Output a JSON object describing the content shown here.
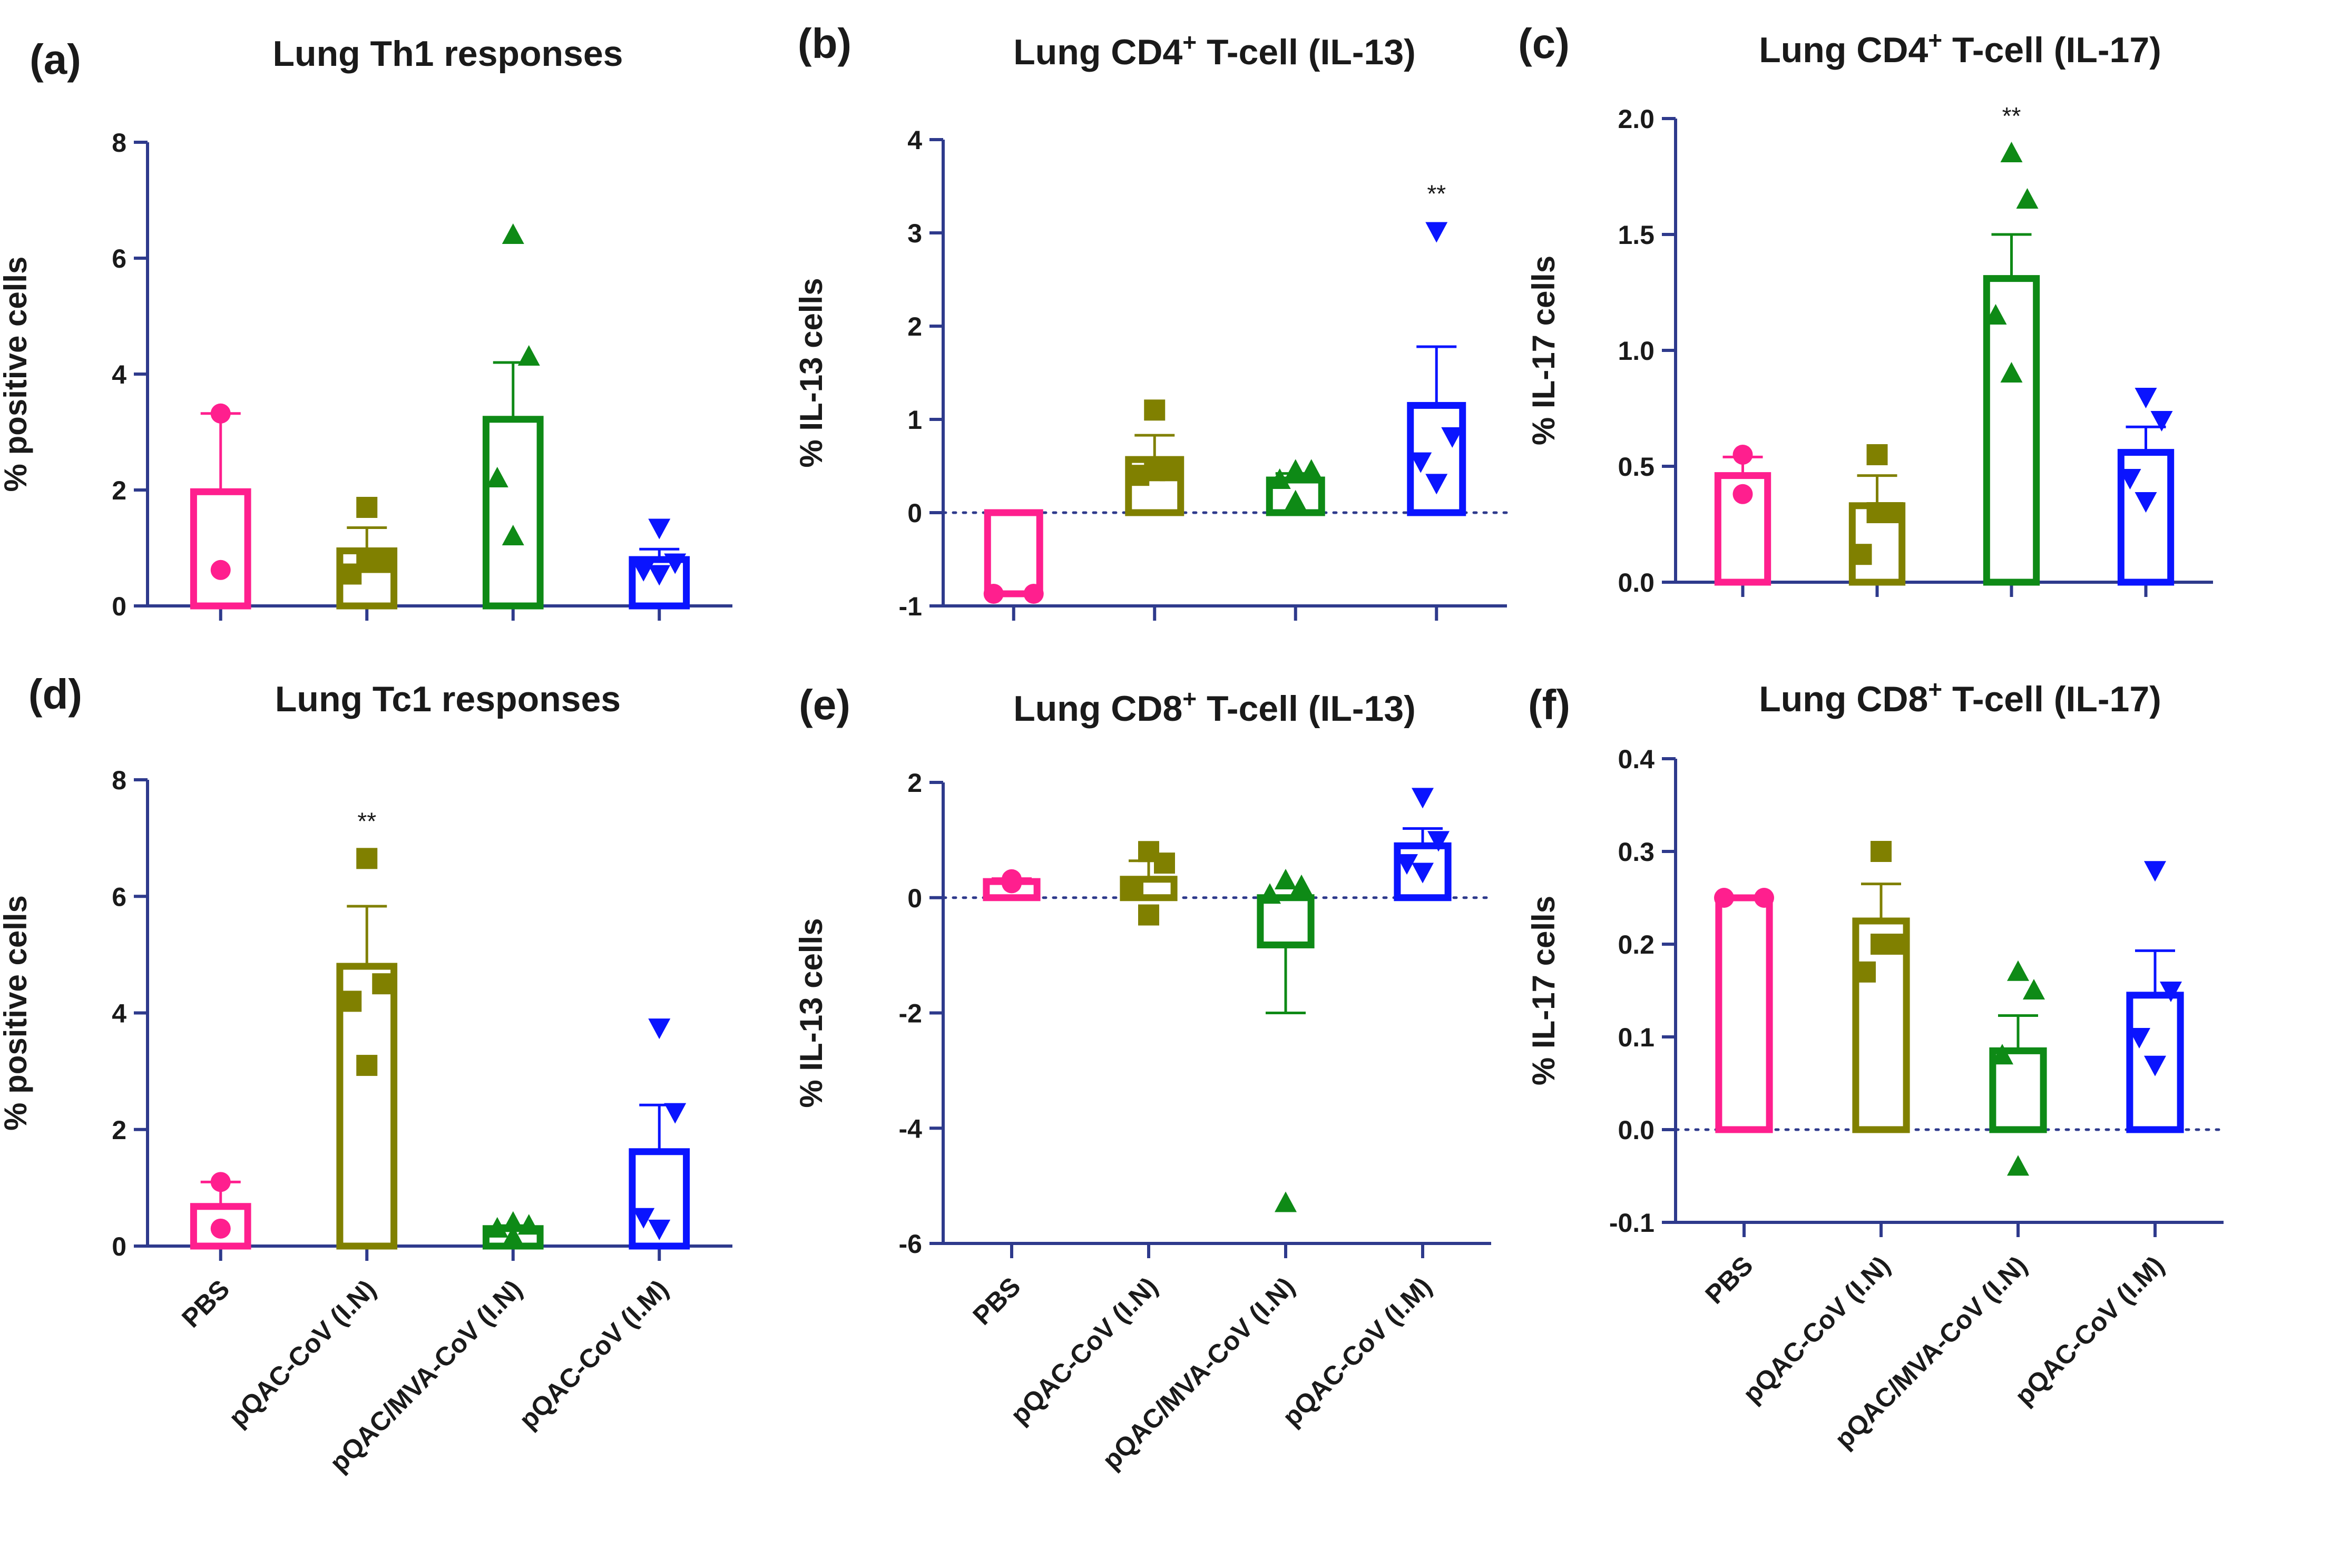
{
  "figure": {
    "categories": [
      "PBS",
      "pQAC-CoV (I.N)",
      "pQAC/MVA-CoV (I.N)",
      "pQAC-CoV (I.M)"
    ],
    "colors": [
      "#ff1f8e",
      "#808000",
      "#0e8a16",
      "#0a14ff"
    ],
    "markers": [
      "circle",
      "square",
      "triangle-up",
      "triangle-down"
    ],
    "axis_color": "#2e3a8c"
  },
  "chart_data": [
    {
      "type": "bar",
      "panel_label": "(a)",
      "title": "Lung Th1 responses",
      "title_sup": "",
      "title_rest": "",
      "ylabel": "% positive cells",
      "ylim": [
        0,
        8
      ],
      "yticks": [
        "0",
        "2",
        "4",
        "6",
        "8"
      ],
      "show_categories": false,
      "zero_line": false,
      "categories": [
        "PBS",
        "pQAC-CoV (I.N)",
        "pQAC/MVA-CoV (I.N)",
        "pQAC-CoV (I.M)"
      ],
      "series": [
        {
          "name": "PBS",
          "mean": 1.97,
          "sem": 1.35,
          "points": [
            3.32,
            0.62
          ],
          "sig": ""
        },
        {
          "name": "pQAC-CoV (I.N)",
          "mean": 0.95,
          "sem": 0.4,
          "points": [
            1.7,
            0.75,
            0.55,
            0.75
          ],
          "sig": ""
        },
        {
          "name": "pQAC/MVA-CoV (I.N)",
          "mean": 3.22,
          "sem": 0.98,
          "points": [
            6.4,
            4.3,
            2.2,
            1.2
          ],
          "sig": ""
        },
        {
          "name": "pQAC-CoV (I.M)",
          "mean": 0.8,
          "sem": 0.18,
          "points": [
            1.35,
            0.75,
            0.62,
            0.55
          ],
          "sig": ""
        }
      ]
    },
    {
      "type": "bar",
      "panel_label": "(b)",
      "title": "Lung CD4",
      "title_sup": "+",
      "title_rest": " T-cell (IL-13)",
      "ylabel": "% IL-13 cells",
      "ylim": [
        -1,
        4
      ],
      "yticks": [
        "-1",
        "0",
        "1",
        "2",
        "3",
        "4"
      ],
      "show_categories": false,
      "zero_line": true,
      "categories": [
        "PBS",
        "pQAC-CoV (I.N)",
        "pQAC/MVA-CoV (I.N)",
        "pQAC-CoV (I.M)"
      ],
      "series": [
        {
          "name": "PBS",
          "mean": -0.87,
          "sem": 0.0,
          "points": [
            -0.87,
            -0.87
          ],
          "sig": ""
        },
        {
          "name": "pQAC-CoV (I.N)",
          "mean": 0.57,
          "sem": 0.26,
          "points": [
            1.1,
            0.45,
            0.4,
            0.45
          ],
          "sig": ""
        },
        {
          "name": "pQAC/MVA-CoV (I.N)",
          "mean": 0.35,
          "sem": 0.07,
          "points": [
            0.45,
            0.45,
            0.35,
            0.12
          ],
          "sig": ""
        },
        {
          "name": "pQAC-CoV (I.M)",
          "mean": 1.15,
          "sem": 0.63,
          "points": [
            3.02,
            0.82,
            0.55,
            0.32
          ],
          "sig": "**"
        }
      ]
    },
    {
      "type": "bar",
      "panel_label": "(c)",
      "title": "Lung CD4",
      "title_sup": "+",
      "title_rest": " T-cell (IL-17)",
      "ylabel": "% IL-17 cells",
      "ylim": [
        0,
        2
      ],
      "yticks": [
        "0.0",
        "0.5",
        "1.0",
        "1.5",
        "2.0"
      ],
      "show_categories": false,
      "zero_line": false,
      "categories": [
        "PBS",
        "pQAC-CoV (I.N)",
        "pQAC/MVA-CoV (I.N)",
        "pQAC-CoV (I.M)"
      ],
      "series": [
        {
          "name": "PBS",
          "mean": 0.46,
          "sem": 0.08,
          "points": [
            0.55,
            0.38
          ],
          "sig": ""
        },
        {
          "name": "pQAC-CoV (I.N)",
          "mean": 0.33,
          "sem": 0.13,
          "points": [
            0.55,
            0.3,
            0.12,
            0.3
          ],
          "sig": ""
        },
        {
          "name": "pQAC/MVA-CoV (I.N)",
          "mean": 1.31,
          "sem": 0.19,
          "points": [
            1.85,
            1.65,
            1.15,
            0.9
          ],
          "sig": "**"
        },
        {
          "name": "pQAC-CoV (I.M)",
          "mean": 0.56,
          "sem": 0.11,
          "points": [
            0.8,
            0.7,
            0.45,
            0.35
          ],
          "sig": ""
        }
      ]
    },
    {
      "type": "bar",
      "panel_label": "(d)",
      "title": "Lung Tc1 responses",
      "title_sup": "",
      "title_rest": "",
      "ylabel": "% positive cells",
      "ylim": [
        0,
        8
      ],
      "yticks": [
        "0",
        "2",
        "4",
        "6",
        "8"
      ],
      "show_categories": true,
      "zero_line": false,
      "categories": [
        "PBS",
        "pQAC-CoV (I.N)",
        "pQAC/MVA-CoV (I.N)",
        "pQAC-CoV (I.M)"
      ],
      "series": [
        {
          "name": "PBS",
          "mean": 0.68,
          "sem": 0.42,
          "points": [
            1.1,
            0.3
          ],
          "sig": ""
        },
        {
          "name": "pQAC-CoV (I.N)",
          "mean": 4.8,
          "sem": 1.03,
          "points": [
            6.65,
            4.5,
            4.2,
            3.1
          ],
          "sig": "**"
        },
        {
          "name": "pQAC/MVA-CoV (I.N)",
          "mean": 0.3,
          "sem": 0.05,
          "points": [
            0.4,
            0.35,
            0.3,
            0.15
          ],
          "sig": ""
        },
        {
          "name": "pQAC-CoV (I.M)",
          "mean": 1.62,
          "sem": 0.8,
          "points": [
            3.75,
            2.3,
            0.5,
            0.3
          ],
          "sig": ""
        }
      ]
    },
    {
      "type": "bar",
      "panel_label": "(e)",
      "title": "Lung CD8",
      "title_sup": "+",
      "title_rest": " T-cell (IL-13)",
      "ylabel": "% IL-13 cells",
      "ylim": [
        -6,
        2
      ],
      "yticks": [
        "-6",
        "-4",
        "-2",
        "0",
        "2"
      ],
      "show_categories": true,
      "zero_line": true,
      "categories": [
        "PBS",
        "pQAC-CoV (I.N)",
        "pQAC/MVA-CoV (I.N)",
        "pQAC-CoV (I.M)"
      ],
      "series": [
        {
          "name": "PBS",
          "mean": 0.28,
          "sem": 0.05,
          "points": [
            0.32,
            0.25
          ],
          "sig": ""
        },
        {
          "name": "pQAC-CoV (I.N)",
          "mean": 0.32,
          "sem": 0.32,
          "points": [
            0.8,
            0.6,
            0.15,
            -0.3
          ],
          "sig": ""
        },
        {
          "name": "pQAC/MVA-CoV (I.N)",
          "mean": -0.82,
          "sem": 1.18,
          "points": [
            0.3,
            0.2,
            0.05,
            -5.3
          ],
          "sig": ""
        },
        {
          "name": "pQAC-CoV (I.M)",
          "mean": 0.9,
          "sem": 0.3,
          "points": [
            1.75,
            1.0,
            0.6,
            0.45
          ],
          "sig": ""
        }
      ]
    },
    {
      "type": "bar",
      "panel_label": "(f)",
      "title": "Lung CD8",
      "title_sup": "+",
      "title_rest": " T-cell (IL-17)",
      "ylabel": "% IL-17 cells",
      "ylim": [
        -0.1,
        0.4
      ],
      "yticks": [
        "-0.1",
        "0.0",
        "0.1",
        "0.2",
        "0.3",
        "0.4"
      ],
      "show_categories": true,
      "zero_line": true,
      "categories": [
        "PBS",
        "pQAC-CoV (I.N)",
        "pQAC/MVA-CoV (I.N)",
        "pQAC-CoV (I.M)"
      ],
      "series": [
        {
          "name": "PBS",
          "mean": 0.25,
          "sem": 0.0,
          "points": [
            0.25,
            0.25
          ],
          "sig": ""
        },
        {
          "name": "pQAC-CoV (I.N)",
          "mean": 0.225,
          "sem": 0.04,
          "points": [
            0.3,
            0.2,
            0.17,
            0.2
          ],
          "sig": ""
        },
        {
          "name": "pQAC/MVA-CoV (I.N)",
          "mean": 0.085,
          "sem": 0.038,
          "points": [
            0.17,
            0.15,
            0.08,
            -0.04
          ],
          "sig": ""
        },
        {
          "name": "pQAC-CoV (I.M)",
          "mean": 0.145,
          "sem": 0.048,
          "points": [
            0.28,
            0.15,
            0.1,
            0.07
          ],
          "sig": ""
        }
      ]
    }
  ]
}
